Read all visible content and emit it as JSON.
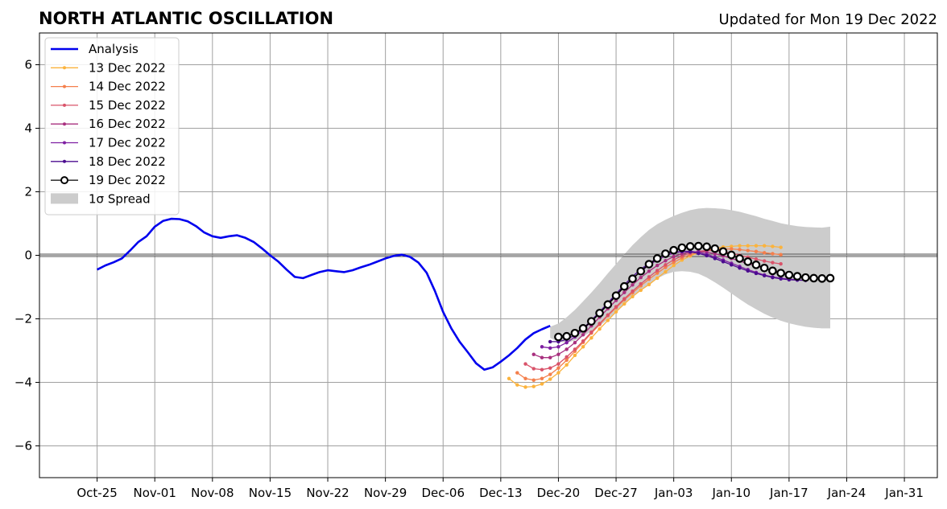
{
  "chart_data": {
    "type": "line",
    "title": "NORTH ATLANTIC OSCILLATION",
    "subtitle": "Updated for Mon 19 Dec 2022",
    "xlabel": "",
    "ylabel": "",
    "x_is_date": true,
    "xlim": [
      "2022-10-18",
      "2023-02-04"
    ],
    "ylim": [
      -7,
      7
    ],
    "x_ticks": [
      {
        "date": "2022-10-25",
        "label": "Oct-25"
      },
      {
        "date": "2022-11-01",
        "label": "Nov-01"
      },
      {
        "date": "2022-11-08",
        "label": "Nov-08"
      },
      {
        "date": "2022-11-15",
        "label": "Nov-15"
      },
      {
        "date": "2022-11-22",
        "label": "Nov-22"
      },
      {
        "date": "2022-11-29",
        "label": "Nov-29"
      },
      {
        "date": "2022-12-06",
        "label": "Dec-06"
      },
      {
        "date": "2022-12-13",
        "label": "Dec-13"
      },
      {
        "date": "2022-12-20",
        "label": "Dec-20"
      },
      {
        "date": "2022-12-27",
        "label": "Dec-27"
      },
      {
        "date": "2023-01-03",
        "label": "Jan-03"
      },
      {
        "date": "2023-01-10",
        "label": "Jan-10"
      },
      {
        "date": "2023-01-17",
        "label": "Jan-17"
      },
      {
        "date": "2023-01-24",
        "label": "Jan-24"
      },
      {
        "date": "2023-01-31",
        "label": "Jan-31"
      }
    ],
    "y_ticks": [
      {
        "value": 6,
        "label": "6"
      },
      {
        "value": 4,
        "label": "4"
      },
      {
        "value": 2,
        "label": "2"
      },
      {
        "value": 0,
        "label": "0"
      },
      {
        "value": -2,
        "label": "−2"
      },
      {
        "value": -4,
        "label": "−4"
      },
      {
        "value": -6,
        "label": "−6"
      }
    ],
    "grid": true,
    "legend_position": "top-left",
    "zero_line": true,
    "analysis": {
      "name": "Analysis",
      "color": "#0000ee",
      "start": "2022-10-25",
      "values": [
        -0.45,
        -0.32,
        -0.22,
        -0.1,
        0.15,
        0.42,
        0.6,
        0.9,
        1.08,
        1.15,
        1.14,
        1.07,
        0.92,
        0.72,
        0.6,
        0.55,
        0.6,
        0.63,
        0.55,
        0.42,
        0.22,
        0.0,
        -0.2,
        -0.45,
        -0.68,
        -0.72,
        -0.62,
        -0.53,
        -0.47,
        -0.5,
        -0.53,
        -0.47,
        -0.38,
        -0.3,
        -0.2,
        -0.1,
        -0.02,
        0.02,
        -0.05,
        -0.23,
        -0.55,
        -1.12,
        -1.78,
        -2.3,
        -2.72,
        -3.05,
        -3.4,
        -3.6,
        -3.53,
        -3.35,
        -3.15,
        -2.92,
        -2.65,
        -2.45,
        -2.33,
        -2.22
      ]
    },
    "forecasts": [
      {
        "name": "13 Dec 2022",
        "color": "#fbb33d",
        "start": "2022-12-14",
        "values": [
          -3.88,
          -4.08,
          -4.15,
          -4.13,
          -4.05,
          -3.9,
          -3.7,
          -3.45,
          -3.15,
          -2.88,
          -2.6,
          -2.32,
          -2.05,
          -1.78,
          -1.53,
          -1.3,
          -1.1,
          -0.92,
          -0.72,
          -0.52,
          -0.32,
          -0.15,
          -0.02,
          0.08,
          0.16,
          0.22,
          0.26,
          0.28,
          0.3,
          0.3,
          0.3,
          0.3,
          0.28,
          0.25
        ]
      },
      {
        "name": "14 Dec 2022",
        "color": "#f47f4c",
        "start": "2022-12-15",
        "values": [
          -3.7,
          -3.88,
          -3.93,
          -3.88,
          -3.75,
          -3.55,
          -3.3,
          -3.02,
          -2.74,
          -2.45,
          -2.18,
          -1.9,
          -1.65,
          -1.4,
          -1.18,
          -0.96,
          -0.75,
          -0.56,
          -0.38,
          -0.22,
          -0.08,
          0.02,
          0.1,
          0.16,
          0.19,
          0.2,
          0.2,
          0.18,
          0.15,
          0.12,
          0.08,
          0.05,
          0.02
        ]
      },
      {
        "name": "15 Dec 2022",
        "color": "#d9536a",
        "start": "2022-12-16",
        "values": [
          -3.42,
          -3.57,
          -3.6,
          -3.55,
          -3.42,
          -3.2,
          -2.96,
          -2.7,
          -2.42,
          -2.15,
          -1.88,
          -1.62,
          -1.37,
          -1.13,
          -0.9,
          -0.68,
          -0.48,
          -0.3,
          -0.14,
          -0.02,
          0.07,
          0.13,
          0.15,
          0.15,
          0.12,
          0.07,
          0.0,
          -0.06,
          -0.12,
          -0.18,
          -0.23,
          -0.27
        ]
      },
      {
        "name": "16 Dec 2022",
        "color": "#a8307f",
        "start": "2022-12-17",
        "values": [
          -3.12,
          -3.22,
          -3.22,
          -3.12,
          -2.96,
          -2.75,
          -2.5,
          -2.22,
          -1.95,
          -1.68,
          -1.42,
          -1.17,
          -0.93,
          -0.7,
          -0.5,
          -0.32,
          -0.17,
          -0.04,
          0.05,
          0.1,
          0.12,
          0.1,
          0.05,
          -0.02,
          -0.1,
          -0.18,
          -0.26,
          -0.34,
          -0.42,
          -0.48,
          -0.53,
          -0.57
        ]
      },
      {
        "name": "17 Dec 2022",
        "color": "#7e1fa2",
        "start": "2022-12-18",
        "values": [
          -2.88,
          -2.92,
          -2.88,
          -2.75,
          -2.57,
          -2.35,
          -2.08,
          -1.8,
          -1.52,
          -1.25,
          -0.99,
          -0.74,
          -0.51,
          -0.31,
          -0.15,
          -0.02,
          0.07,
          0.12,
          0.13,
          0.1,
          0.03,
          -0.05,
          -0.15,
          -0.25,
          -0.35,
          -0.45,
          -0.54,
          -0.62,
          -0.68,
          -0.72,
          -0.75,
          -0.77
        ]
      },
      {
        "name": "18 Dec 2022",
        "color": "#4b0c8f",
        "start": "2022-12-19",
        "values": [
          -2.72,
          -2.72,
          -2.65,
          -2.5,
          -2.3,
          -2.05,
          -1.78,
          -1.5,
          -1.21,
          -0.93,
          -0.67,
          -0.44,
          -0.25,
          -0.09,
          0.03,
          0.1,
          0.12,
          0.11,
          0.06,
          -0.01,
          -0.1,
          -0.2,
          -0.3,
          -0.4,
          -0.49,
          -0.57,
          -0.64,
          -0.7,
          -0.74,
          -0.77,
          -0.78,
          -0.79
        ]
      }
    ],
    "current_forecast": {
      "name": "19 Dec 2022",
      "color": "#000000",
      "start": "2022-12-20",
      "values": [
        -2.57,
        -2.55,
        -2.45,
        -2.3,
        -2.08,
        -1.82,
        -1.55,
        -1.27,
        -0.98,
        -0.74,
        -0.5,
        -0.28,
        -0.1,
        0.05,
        0.16,
        0.24,
        0.28,
        0.29,
        0.27,
        0.21,
        0.12,
        0.01,
        -0.1,
        -0.2,
        -0.3,
        -0.4,
        -0.49,
        -0.56,
        -0.62,
        -0.66,
        -0.7,
        -0.72,
        -0.73,
        -0.72
      ]
    },
    "spread": {
      "name": "1σ Spread",
      "color": "#cccccc",
      "start": "2022-12-19",
      "upper": [
        -2.25,
        -2.15,
        -1.95,
        -1.72,
        -1.45,
        -1.17,
        -0.88,
        -0.57,
        -0.27,
        0.03,
        0.32,
        0.57,
        0.8,
        0.98,
        1.12,
        1.24,
        1.34,
        1.42,
        1.47,
        1.49,
        1.48,
        1.46,
        1.42,
        1.37,
        1.3,
        1.23,
        1.15,
        1.08,
        1.01,
        0.96,
        0.92,
        0.89,
        0.88,
        0.87,
        0.9
      ],
      "lower": [
        -2.6,
        -2.72,
        -2.75,
        -2.68,
        -2.55,
        -2.4,
        -2.22,
        -2.02,
        -1.78,
        -1.55,
        -1.32,
        -1.1,
        -0.9,
        -0.73,
        -0.6,
        -0.52,
        -0.5,
        -0.52,
        -0.58,
        -0.7,
        -0.85,
        -1.02,
        -1.2,
        -1.38,
        -1.55,
        -1.7,
        -1.84,
        -1.96,
        -2.06,
        -2.14,
        -2.2,
        -2.25,
        -2.28,
        -2.3,
        -2.3
      ]
    }
  }
}
